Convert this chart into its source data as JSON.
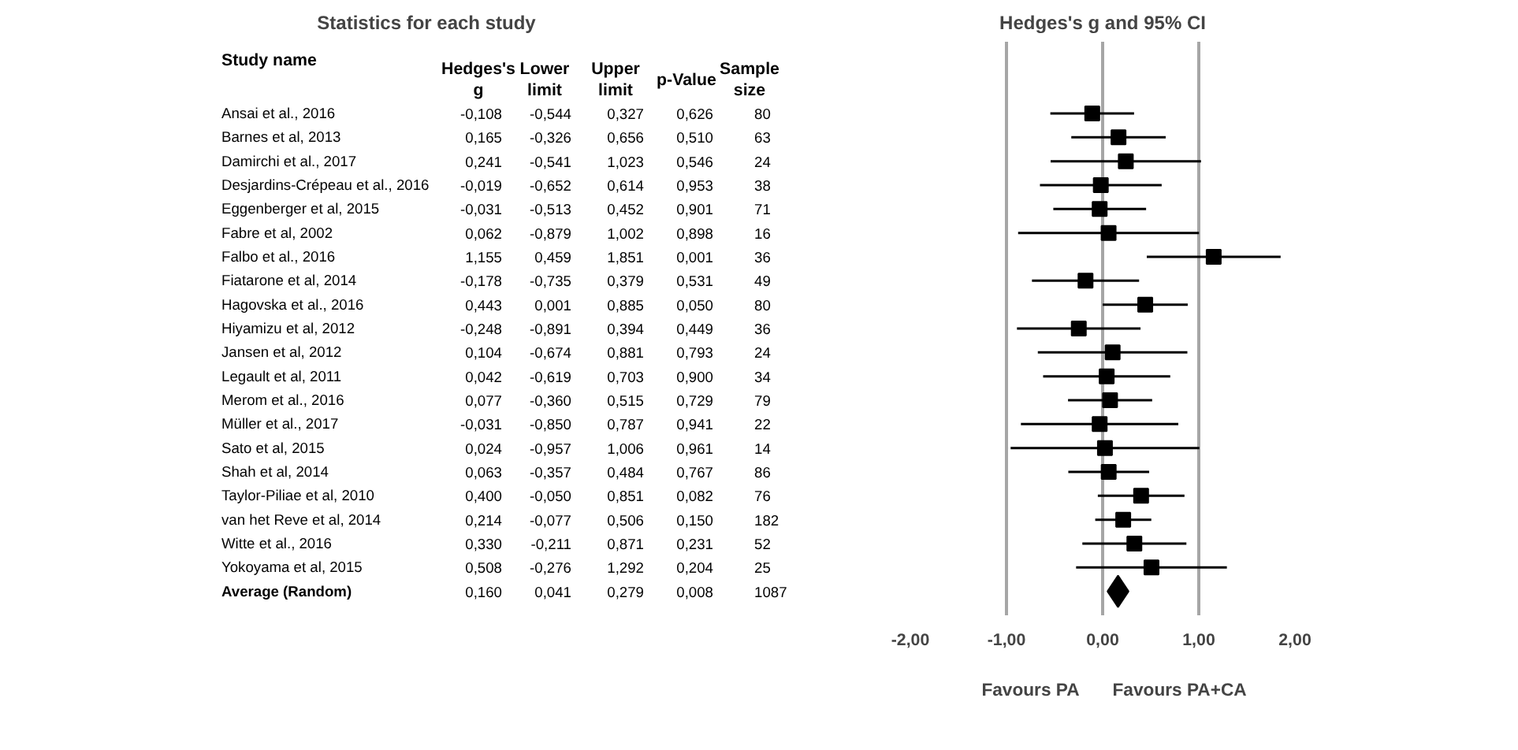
{
  "chart_data": [
    {
      "type": "heatmap",
      "title": "Statistics for each study",
      "ylabel": "Study name",
      "categories": [
        "Hedges's\ng",
        "Lower\nlimit",
        "Upper\nlimit",
        "p-Value",
        "Sample\nsize"
      ],
      "y_categories": [
        "Ansai et al., 2016",
        "Barnes et al, 2013",
        "Damirchi et al., 2017",
        "Desjardins-Crépeau et al., 2016",
        "Eggenberger et al, 2015",
        "Fabre et al, 2002",
        "Falbo et al., 2016",
        "Fiatarone et al, 2014",
        "Hagovska et al., 2016",
        "Hiyamizu et al, 2012",
        "Jansen et al, 2012",
        "Legault et al, 2011",
        "Merom et al., 2016",
        "Müller et al., 2017",
        "Sato et al, 2015",
        "Shah et al, 2014",
        "Taylor-Piliae et al, 2010",
        "van het Reve et al, 2014",
        "Witte et al., 2016",
        "Yokoyama et al, 2015",
        "Average (Random)"
      ],
      "cells": [
        [
          -0.108,
          -0.544,
          0.327,
          0.626,
          80
        ],
        [
          0.165,
          -0.326,
          0.656,
          0.51,
          63
        ],
        [
          0.241,
          -0.541,
          1.023,
          0.546,
          24
        ],
        [
          -0.019,
          -0.652,
          0.614,
          0.953,
          38
        ],
        [
          -0.031,
          -0.513,
          0.452,
          0.901,
          71
        ],
        [
          0.062,
          -0.879,
          1.002,
          0.898,
          16
        ],
        [
          1.155,
          0.459,
          1.851,
          0.001,
          36
        ],
        [
          -0.178,
          -0.735,
          0.379,
          0.531,
          49
        ],
        [
          0.443,
          0.001,
          0.885,
          0.05,
          80
        ],
        [
          -0.248,
          -0.891,
          0.394,
          0.449,
          36
        ],
        [
          0.104,
          -0.674,
          0.881,
          0.793,
          24
        ],
        [
          0.042,
          -0.619,
          0.703,
          0.9,
          34
        ],
        [
          0.077,
          -0.36,
          0.515,
          0.729,
          79
        ],
        [
          -0.031,
          -0.85,
          0.787,
          0.941,
          22
        ],
        [
          0.024,
          -0.957,
          1.006,
          0.961,
          14
        ],
        [
          0.063,
          -0.357,
          0.484,
          0.767,
          86
        ],
        [
          0.4,
          -0.05,
          0.851,
          0.082,
          76
        ],
        [
          0.214,
          -0.077,
          0.506,
          0.15,
          182
        ],
        [
          0.33,
          -0.211,
          0.871,
          0.231,
          52
        ],
        [
          0.508,
          -0.276,
          1.292,
          0.204,
          25
        ],
        [
          0.16,
          0.041,
          0.279,
          0.008,
          1087
        ]
      ],
      "cell_labels": [
        [
          "-0,108",
          "-0,544",
          "0,327",
          "0,626",
          "80"
        ],
        [
          "0,165",
          "-0,326",
          "0,656",
          "0,510",
          "63"
        ],
        [
          "0,241",
          "-0,541",
          "1,023",
          "0,546",
          "24"
        ],
        [
          "-0,019",
          "-0,652",
          "0,614",
          "0,953",
          "38"
        ],
        [
          "-0,031",
          "-0,513",
          "0,452",
          "0,901",
          "71"
        ],
        [
          "0,062",
          "-0,879",
          "1,002",
          "0,898",
          "16"
        ],
        [
          "1,155",
          "0,459",
          "1,851",
          "0,001",
          "36"
        ],
        [
          "-0,178",
          "-0,735",
          "0,379",
          "0,531",
          "49"
        ],
        [
          "0,443",
          "0,001",
          "0,885",
          "0,050",
          "80"
        ],
        [
          "-0,248",
          "-0,891",
          "0,394",
          "0,449",
          "36"
        ],
        [
          "0,104",
          "-0,674",
          "0,881",
          "0,793",
          "24"
        ],
        [
          "0,042",
          "-0,619",
          "0,703",
          "0,900",
          "34"
        ],
        [
          "0,077",
          "-0,360",
          "0,515",
          "0,729",
          "79"
        ],
        [
          "-0,031",
          "-0,850",
          "0,787",
          "0,941",
          "22"
        ],
        [
          "0,024",
          "-0,957",
          "1,006",
          "0,961",
          "14"
        ],
        [
          "0,063",
          "-0,357",
          "0,484",
          "0,767",
          "86"
        ],
        [
          "0,400",
          "-0,050",
          "0,851",
          "0,082",
          "76"
        ],
        [
          "0,214",
          "-0,077",
          "0,506",
          "0,150",
          "182"
        ],
        [
          "0,330",
          "-0,211",
          "0,871",
          "0,231",
          "52"
        ],
        [
          "0,508",
          "-0,276",
          "1,292",
          "0,204",
          "25"
        ],
        [
          "0,160",
          "0,041",
          "0,279",
          "0,008",
          "1087"
        ]
      ]
    },
    {
      "type": "scatter",
      "title": "Hedges's g and 95% CI",
      "orientation": "horizontal",
      "categories": [
        null,
        null,
        null,
        null,
        null,
        null,
        null,
        null,
        null,
        null,
        null,
        null,
        null,
        null,
        null,
        null,
        null,
        null,
        null,
        null,
        null
      ],
      "series": [
        {
          "color": "#000000",
          "marker": "square",
          "values": [
            -0.108,
            0.165,
            0.241,
            -0.019,
            -0.031,
            0.062,
            1.155,
            -0.178,
            0.443,
            -0.248,
            0.104,
            0.042,
            0.077,
            -0.031,
            0.024,
            0.063,
            0.4,
            0.214,
            0.33,
            0.508,
            null
          ],
          "errors": [
            [
              -0.544,
              0.327
            ],
            [
              -0.326,
              0.656
            ],
            [
              -0.541,
              1.023
            ],
            [
              -0.652,
              0.614
            ],
            [
              -0.513,
              0.452
            ],
            [
              -0.879,
              1.002
            ],
            [
              0.459,
              1.851
            ],
            [
              -0.735,
              0.379
            ],
            [
              0.001,
              0.885
            ],
            [
              -0.891,
              0.394
            ],
            [
              -0.674,
              0.881
            ],
            [
              -0.619,
              0.703
            ],
            [
              -0.36,
              0.515
            ],
            [
              -0.85,
              0.787
            ],
            [
              -0.957,
              1.006
            ],
            [
              -0.357,
              0.484
            ],
            [
              -0.05,
              0.851
            ],
            [
              -0.077,
              0.506
            ],
            [
              -0.211,
              0.871
            ],
            [
              -0.276,
              1.292
            ],
            null
          ]
        },
        {
          "color": "#000000",
          "marker": "diamond",
          "values": [
            null,
            null,
            null,
            null,
            null,
            null,
            null,
            null,
            null,
            null,
            null,
            null,
            null,
            null,
            null,
            null,
            null,
            null,
            null,
            null,
            0.16
          ]
        }
      ],
      "xlim": [
        -2,
        2
      ],
      "xticks": [
        {
          "value": -2,
          "label": "-2,00"
        },
        {
          "value": -1,
          "label": "-1,00"
        },
        {
          "value": 0,
          "label": "0,00"
        },
        {
          "value": 1,
          "label": "1,00"
        },
        {
          "value": 2,
          "label": "2,00"
        }
      ],
      "grid": "x",
      "tick_labels": "x",
      "annotations": [
        "Favours PA",
        "Favours PA+CA"
      ]
    }
  ]
}
